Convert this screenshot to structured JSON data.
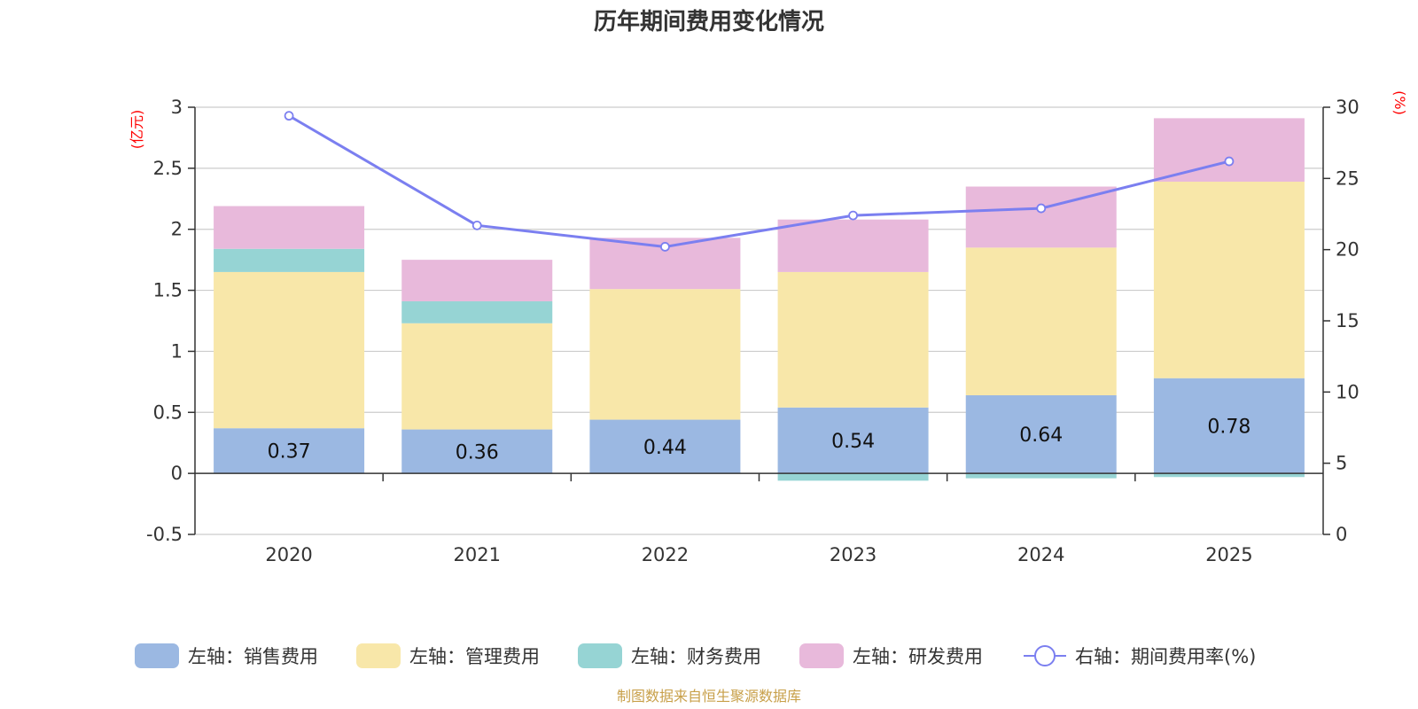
{
  "chart_data": {
    "type": "bar",
    "title": "历年期间费用变化情况",
    "left_axis_unit": "(亿元)",
    "right_axis_unit": "(%)",
    "categories": [
      "2020",
      "2021",
      "2022",
      "2023",
      "2024",
      "2025"
    ],
    "left_ylim": [
      -0.5,
      3
    ],
    "left_ticks": [
      "3",
      "2.5",
      "2",
      "1.5",
      "1",
      "0.5",
      "0",
      "-0.5"
    ],
    "right_ylim": [
      0,
      30
    ],
    "right_ticks": [
      "30",
      "25",
      "20",
      "15",
      "10",
      "5",
      "0"
    ],
    "series": [
      {
        "name": "左轴：销售费用",
        "axis": "left",
        "kind": "bar",
        "color": "#9bb8e2",
        "values": [
          0.37,
          0.36,
          0.44,
          0.54,
          0.64,
          0.78
        ],
        "labels": [
          "0.37",
          "0.36",
          "0.44",
          "0.54",
          "0.64",
          "0.78"
        ]
      },
      {
        "name": "左轴：管理费用",
        "axis": "left",
        "kind": "bar",
        "color": "#f8e7a9",
        "values": [
          1.28,
          0.87,
          1.07,
          1.11,
          1.21,
          1.61
        ]
      },
      {
        "name": "左轴：财务费用",
        "axis": "left",
        "kind": "bar",
        "color": "#96d4d4",
        "values": [
          0.19,
          0.18,
          0.0,
          -0.06,
          -0.04,
          -0.03
        ]
      },
      {
        "name": "左轴：研发费用",
        "axis": "left",
        "kind": "bar",
        "color": "#e8b9db",
        "values": [
          0.35,
          0.34,
          0.42,
          0.43,
          0.5,
          0.52
        ]
      },
      {
        "name": "右轴：期间费用率(%)",
        "axis": "right",
        "kind": "line",
        "color": "#7b7ff0",
        "values": [
          29.4,
          21.7,
          20.2,
          22.4,
          22.9,
          26.2
        ]
      }
    ],
    "source": "制图数据来自恒生聚源数据库"
  }
}
